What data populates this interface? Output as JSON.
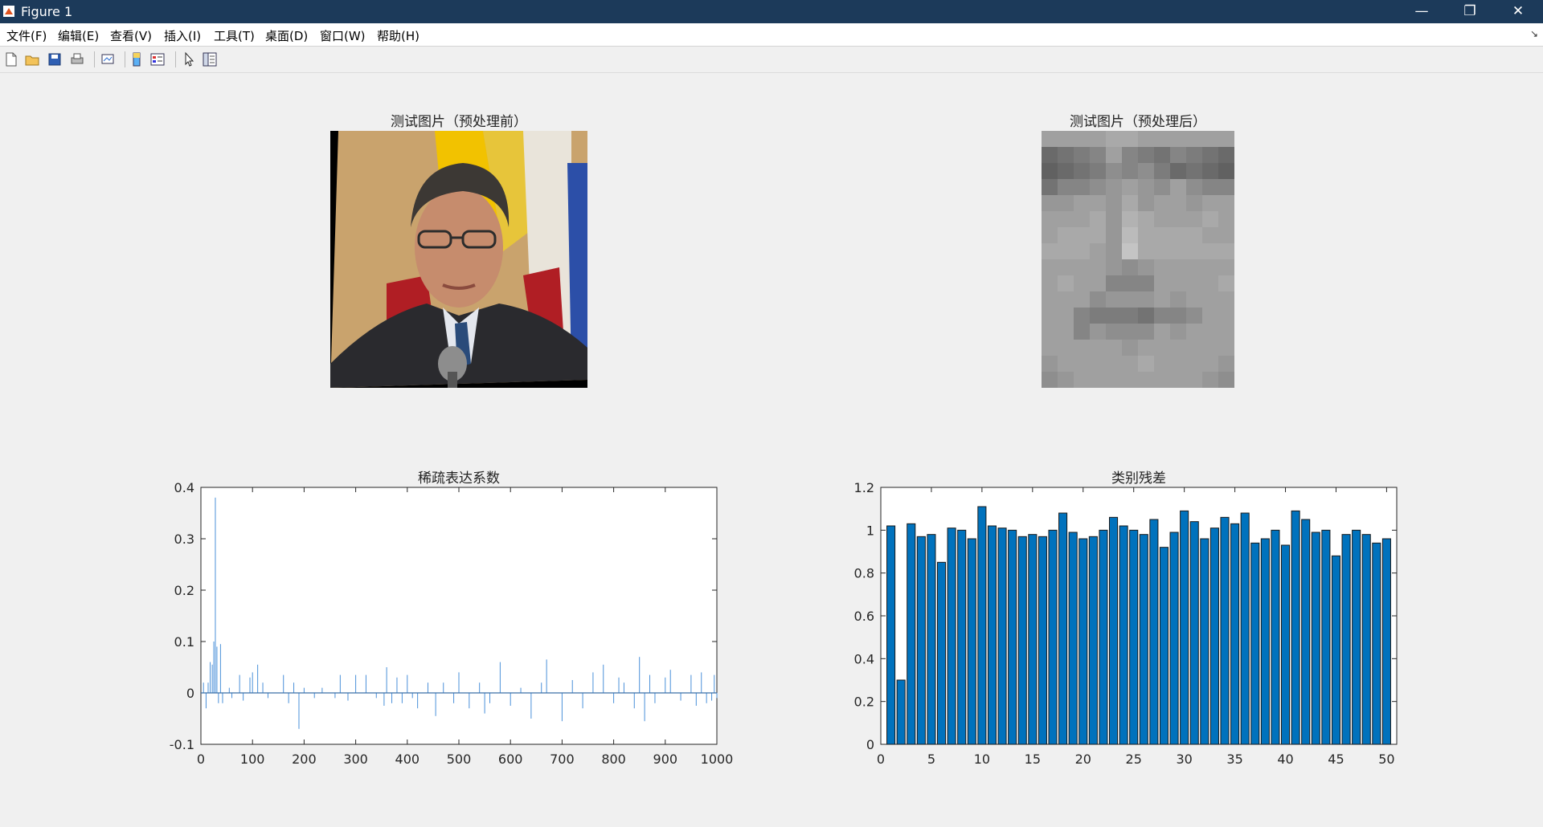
{
  "window": {
    "title": "Figure 1",
    "minimize": "—",
    "restore": "❐",
    "close": "✕"
  },
  "menu": {
    "items": [
      "文件(F)",
      "编辑(E)",
      "查看(V)",
      "插入(I)",
      "工具(T)",
      "桌面(D)",
      "窗口(W)",
      "帮助(H)"
    ],
    "pin_icon": "↘"
  },
  "toolbar": {
    "icons": [
      "new-figure-icon",
      "open-file-icon",
      "save-icon",
      "print-icon",
      "link-plot-icon",
      "colorbar-icon",
      "legend-icon",
      "edit-plot-pointer-icon",
      "property-inspector-icon"
    ]
  },
  "plots": {
    "img1_title": "测试图片（预处理前）",
    "img2_title": "测试图片（预处理后）",
    "sparse_title": "稀疏表达系数",
    "residual_title": "类别残差"
  },
  "chart_data": [
    {
      "type": "line",
      "title": "稀疏表达系数",
      "xlim": [
        0,
        1000
      ],
      "ylim": [
        -0.1,
        0.4
      ],
      "xticks": [
        "0",
        "100",
        "200",
        "300",
        "400",
        "500",
        "600",
        "700",
        "800",
        "900",
        "1000"
      ],
      "yticks": [
        "-0.1",
        "0",
        "0.1",
        "0.2",
        "0.3",
        "0.4"
      ],
      "x": [
        5,
        10,
        14,
        18,
        22,
        25,
        28,
        31,
        34,
        38,
        42,
        55,
        60,
        75,
        82,
        95,
        100,
        110,
        120,
        130,
        160,
        170,
        180,
        190,
        200,
        220,
        235,
        260,
        270,
        285,
        300,
        320,
        340,
        355,
        360,
        370,
        380,
        390,
        400,
        410,
        420,
        440,
        455,
        470,
        490,
        500,
        520,
        540,
        550,
        560,
        580,
        600,
        620,
        640,
        660,
        670,
        700,
        720,
        740,
        760,
        780,
        800,
        810,
        820,
        840,
        850,
        860,
        870,
        880,
        900,
        910,
        930,
        950,
        960,
        970,
        980,
        990,
        995,
        1000
      ],
      "y": [
        0.02,
        -0.03,
        0.02,
        0.06,
        0.055,
        0.1,
        0.38,
        0.09,
        -0.02,
        0.095,
        -0.02,
        0.01,
        -0.01,
        0.035,
        -0.015,
        0.03,
        0.04,
        0.055,
        0.02,
        -0.01,
        0.035,
        -0.02,
        0.02,
        -0.07,
        0.01,
        -0.01,
        0.01,
        -0.01,
        0.035,
        -0.015,
        0.035,
        0.035,
        -0.01,
        -0.025,
        0.05,
        -0.02,
        0.03,
        -0.02,
        0.035,
        -0.01,
        -0.03,
        0.02,
        -0.045,
        0.02,
        -0.02,
        0.04,
        -0.03,
        0.02,
        -0.04,
        -0.02,
        0.06,
        -0.025,
        0.01,
        -0.05,
        0.02,
        0.065,
        -0.055,
        0.025,
        -0.03,
        0.04,
        0.055,
        -0.02,
        0.03,
        0.02,
        -0.03,
        0.07,
        -0.055,
        0.035,
        -0.02,
        0.03,
        0.045,
        -0.015,
        0.035,
        -0.025,
        0.04,
        -0.02,
        -0.015,
        0.035,
        -0.01
      ]
    },
    {
      "type": "bar",
      "title": "类别残差",
      "xlim": [
        0,
        51
      ],
      "ylim": [
        0,
        1.2
      ],
      "xticks": [
        "0",
        "5",
        "10",
        "15",
        "20",
        "25",
        "30",
        "35",
        "40",
        "45",
        "50"
      ],
      "yticks": [
        "0",
        "0.2",
        "0.4",
        "0.6",
        "0.8",
        "1",
        "1.2"
      ],
      "color": "#0072bd",
      "categories": [
        1,
        2,
        3,
        4,
        5,
        6,
        7,
        8,
        9,
        10,
        11,
        12,
        13,
        14,
        15,
        16,
        17,
        18,
        19,
        20,
        21,
        22,
        23,
        24,
        25,
        26,
        27,
        28,
        29,
        30,
        31,
        32,
        33,
        34,
        35,
        36,
        37,
        38,
        39,
        40,
        41,
        42,
        43,
        44,
        45,
        46,
        47,
        48,
        49,
        50
      ],
      "values": [
        1.02,
        0.3,
        1.03,
        0.97,
        0.98,
        0.85,
        1.01,
        1.0,
        0.96,
        1.11,
        1.02,
        1.01,
        1.0,
        0.97,
        0.98,
        0.97,
        1.0,
        1.08,
        0.99,
        0.96,
        0.97,
        1.0,
        1.06,
        1.02,
        1.0,
        0.98,
        1.05,
        0.92,
        0.99,
        1.09,
        1.04,
        0.96,
        1.01,
        1.06,
        1.03,
        1.08,
        0.94,
        0.96,
        1.0,
        0.93,
        1.09,
        1.05,
        0.99,
        1.0,
        0.88,
        0.98,
        1.0,
        0.98,
        0.94,
        0.96
      ]
    }
  ]
}
